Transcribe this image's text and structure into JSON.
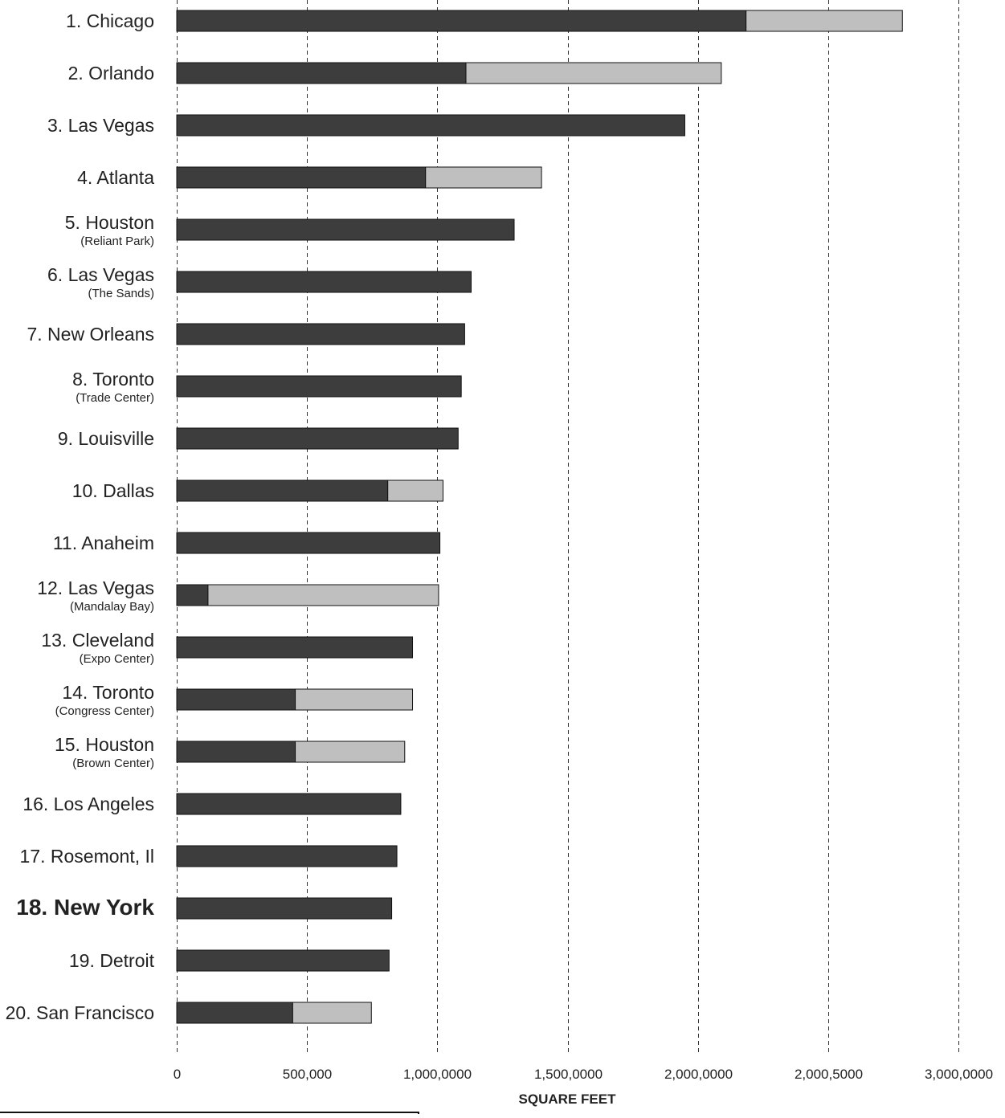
{
  "chart_data": {
    "type": "bar",
    "orientation": "horizontal",
    "stacked": true,
    "xlabel": "SQUARE FEET",
    "xlim": [
      0,
      3000000
    ],
    "x_ticks": [
      0,
      500000,
      1000000,
      1500000,
      2000000,
      2500000,
      3000000
    ],
    "x_tick_labels": [
      "0",
      "500,000",
      "1,000,0000",
      "1,500,0000",
      "2,000,0000",
      "2,000,5000",
      "3,000,0000"
    ],
    "grid": "vertical dashed",
    "categories": [
      {
        "label": "1.  Chicago",
        "sublabel": ""
      },
      {
        "label": "2.  Orlando",
        "sublabel": ""
      },
      {
        "label": "3.  Las Vegas",
        "sublabel": ""
      },
      {
        "label": "4.  Atlanta",
        "sublabel": ""
      },
      {
        "label": "5.  Houston",
        "sublabel": "(Reliant Park)"
      },
      {
        "label": "6.  Las Vegas",
        "sublabel": "(The Sands)"
      },
      {
        "label": "7.  New Orleans",
        "sublabel": ""
      },
      {
        "label": "8.  Toronto",
        "sublabel": "(Trade Center)"
      },
      {
        "label": "9.  Louisville",
        "sublabel": ""
      },
      {
        "label": "10.  Dallas",
        "sublabel": ""
      },
      {
        "label": "11.  Anaheim",
        "sublabel": ""
      },
      {
        "label": "12.  Las Vegas",
        "sublabel": "(Mandalay Bay)"
      },
      {
        "label": "13.  Cleveland",
        "sublabel": "(Expo Center)"
      },
      {
        "label": "14.  Toronto",
        "sublabel": "(Congress Center)"
      },
      {
        "label": "15.  Houston",
        "sublabel": "(Brown Center)"
      },
      {
        "label": "16.  Los Angeles",
        "sublabel": ""
      },
      {
        "label": "17.  Rosemont, Il",
        "sublabel": ""
      },
      {
        "label": "18.  New York",
        "sublabel": "",
        "highlight": true
      },
      {
        "label": "19.  Detroit",
        "sublabel": ""
      },
      {
        "label": "20.  San Francisco",
        "sublabel": ""
      }
    ],
    "series": [
      {
        "color": "#3d3d3d",
        "values": [
          2185000,
          1110000,
          1950000,
          955000,
          1295000,
          1130000,
          1105000,
          1092000,
          1080000,
          810000,
          1010000,
          120000,
          905000,
          455000,
          455000,
          860000,
          845000,
          825000,
          815000,
          445000
        ]
      },
      {
        "color": "#bfbfbf",
        "values": [
          600000,
          980000,
          0,
          445000,
          0,
          0,
          0,
          0,
          0,
          212000,
          0,
          885000,
          0,
          450000,
          420000,
          0,
          0,
          0,
          0,
          302000
        ]
      }
    ]
  }
}
